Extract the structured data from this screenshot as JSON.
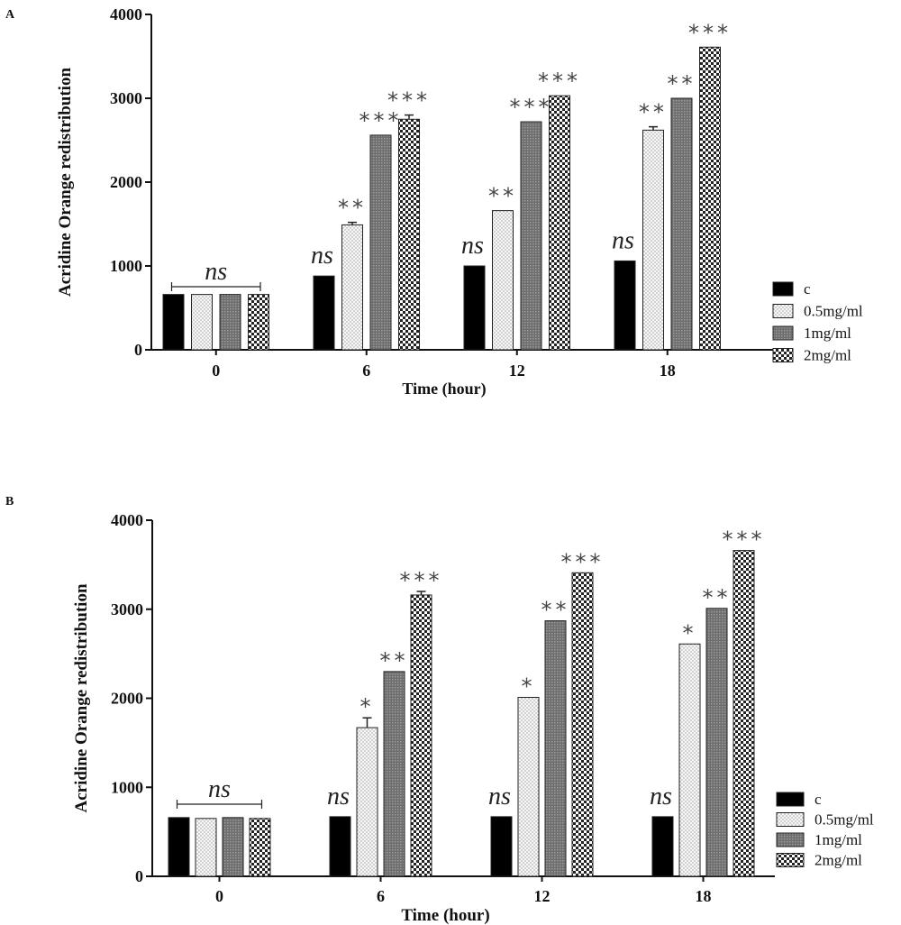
{
  "chart_data": [
    {
      "type": "bar",
      "panel_label": "A",
      "categories": [
        "0",
        "6",
        "12",
        "18"
      ],
      "xlabel": "Time (hour)",
      "ylabel": "Acridine Orange redistribution",
      "ylim": [
        0,
        4000
      ],
      "yticks": [
        "0",
        "1000",
        "2000",
        "3000",
        "4000"
      ],
      "series": [
        {
          "name": "c",
          "values": [
            660,
            880,
            1000,
            1060
          ]
        },
        {
          "name": "0.5mg/ml",
          "values": [
            660,
            1490,
            1660,
            2620
          ],
          "errors": [
            0,
            30,
            0,
            40
          ]
        },
        {
          "name": "1mg/ml",
          "values": [
            660,
            2560,
            2720,
            3000
          ]
        },
        {
          "name": "2mg/ml",
          "values": [
            660,
            2750,
            3030,
            3610
          ],
          "errors": [
            0,
            50,
            0,
            0
          ]
        }
      ],
      "annotations": {
        "bracket_label": "ns",
        "labels": [
          [
            "",
            "",
            "",
            ""
          ],
          [
            "ns",
            "**",
            "***",
            "***"
          ],
          [
            "ns",
            "**",
            "***",
            "***"
          ],
          [
            "ns",
            "**",
            "**",
            "***"
          ]
        ]
      },
      "legend": {
        "position": "right",
        "labels": [
          "c",
          "0.5mg/ml",
          "1mg/ml",
          "2mg/ml"
        ]
      }
    },
    {
      "type": "bar",
      "panel_label": "B",
      "categories": [
        "0",
        "6",
        "12",
        "18"
      ],
      "xlabel": "Time (hour)",
      "ylabel": "Acridine Orange redistribution",
      "ylim": [
        0,
        4000
      ],
      "yticks": [
        "0",
        "1000",
        "2000",
        "3000",
        "4000"
      ],
      "series": [
        {
          "name": "c",
          "values": [
            660,
            670,
            670,
            670
          ]
        },
        {
          "name": "0.5mg/ml",
          "values": [
            650,
            1670,
            2010,
            2610
          ],
          "errors": [
            0,
            110,
            0,
            0
          ]
        },
        {
          "name": "1mg/ml",
          "values": [
            660,
            2300,
            2870,
            3010
          ]
        },
        {
          "name": "2mg/ml",
          "values": [
            650,
            3160,
            3410,
            3660
          ],
          "errors": [
            0,
            40,
            0,
            0
          ]
        }
      ],
      "annotations": {
        "bracket_label": "ns",
        "labels": [
          [
            "",
            "",
            "",
            ""
          ],
          [
            "ns",
            "*",
            "**",
            "***"
          ],
          [
            "ns",
            "*",
            "**",
            "***"
          ],
          [
            "ns",
            "*",
            "**",
            "***"
          ]
        ]
      },
      "legend": {
        "position": "right",
        "labels": [
          "c",
          "0.5mg/ml",
          "1mg/ml",
          "2mg/ml"
        ]
      }
    }
  ]
}
